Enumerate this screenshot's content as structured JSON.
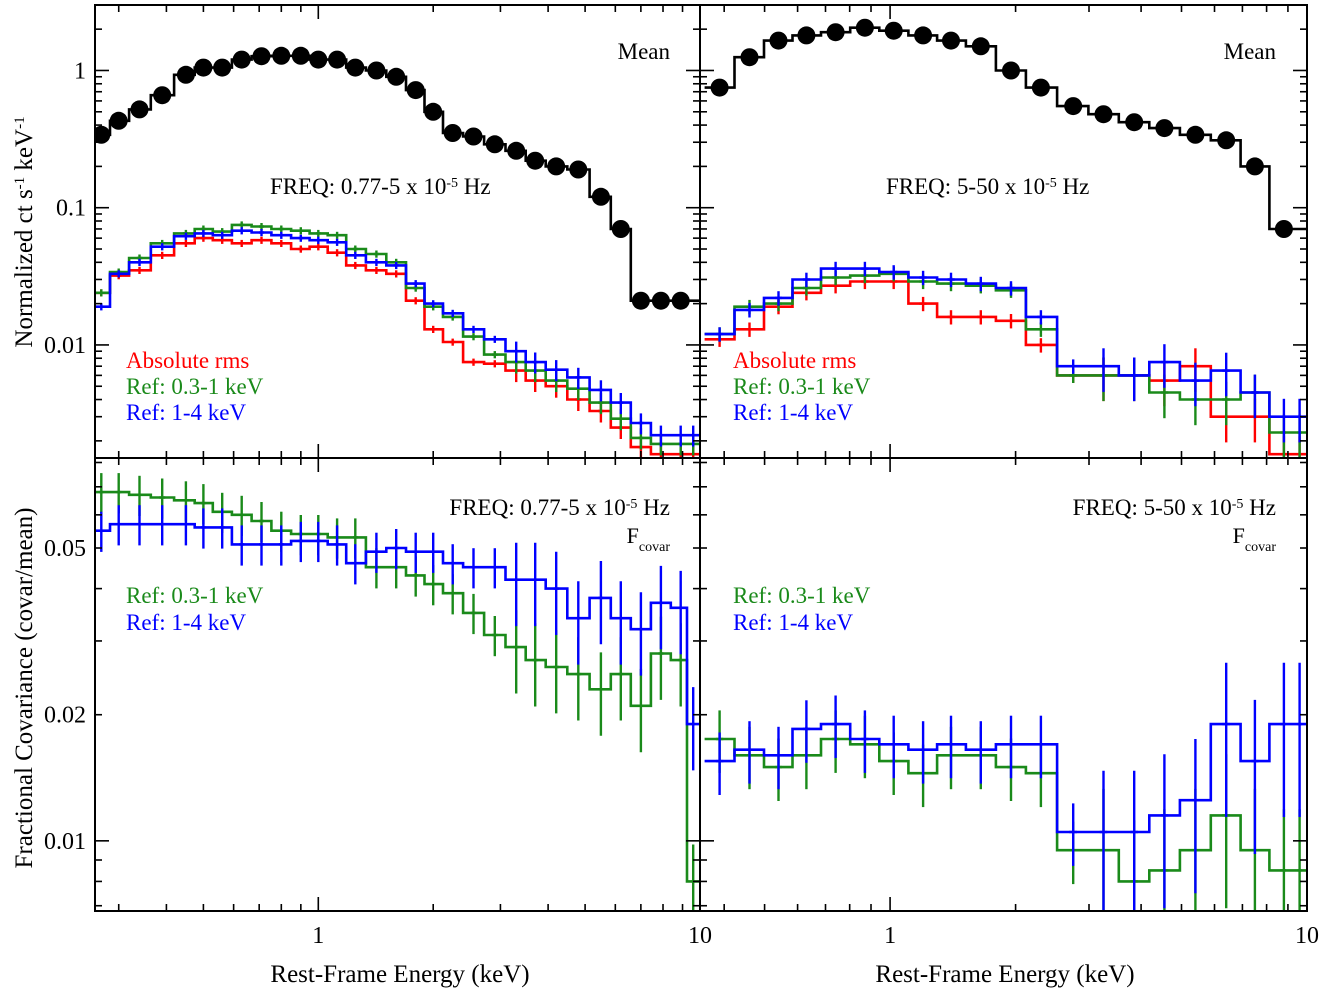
{
  "colors": {
    "mean": "#000000",
    "rms": "#ff0000",
    "ref_soft": "#1a8a1a",
    "ref_hard": "#0000ff"
  },
  "axes": {
    "xlabel": "Rest-Frame Energy (keV)",
    "ylabel_top": "Normalized ct s-1 keV-1",
    "ylabel_bottom": "Fractional Covariance (covar/mean)",
    "xlim_left": [
      0.26,
      10
    ],
    "xlim_right": [
      0.35,
      10
    ],
    "ylim_top": [
      0.0015,
      3.0
    ],
    "ylim_bottom": [
      0.0068,
      0.082
    ],
    "x_ticks": [
      {
        "v": 1,
        "t": "1"
      },
      {
        "v": 10,
        "t": "10"
      }
    ],
    "y_ticks_top": [
      {
        "v": 1,
        "t": "1"
      },
      {
        "v": 0.1,
        "t": "0.1"
      },
      {
        "v": 0.01,
        "t": "0.01"
      }
    ],
    "y_ticks_bottom": [
      {
        "v": 0.05,
        "t": "0.05"
      },
      {
        "v": 0.02,
        "t": "0.02"
      },
      {
        "v": 0.01,
        "t": "0.01"
      }
    ],
    "scale": "log-log"
  },
  "labels": {
    "mean": "Mean",
    "freq_low": "FREQ: 0.77-5 x 10",
    "freq_high": "FREQ: 5-50 x 10",
    "freq_exp": "-5",
    "freq_unit": " Hz",
    "fcovar": "F",
    "fcovar_sub": "covar",
    "legend_rms": "Absolute rms",
    "legend_soft": "Ref: 0.3-1 keV",
    "legend_hard": "Ref: 1-4 keV"
  },
  "chart_data": [
    {
      "panel": "top-left",
      "type": "line",
      "x_scale": "log",
      "y_scale": "log",
      "energy_keV": [
        0.27,
        0.3,
        0.34,
        0.39,
        0.45,
        0.5,
        0.56,
        0.63,
        0.71,
        0.8,
        0.9,
        1.0,
        1.12,
        1.25,
        1.42,
        1.6,
        1.8,
        2.0,
        2.25,
        2.55,
        2.9,
        3.3,
        3.7,
        4.2,
        4.8,
        5.5,
        6.2,
        7.0,
        7.9,
        8.9,
        9.6
      ],
      "series": [
        {
          "name": "Mean",
          "values": [
            0.34,
            0.43,
            0.52,
            0.66,
            0.93,
            1.05,
            1.05,
            1.2,
            1.27,
            1.28,
            1.28,
            1.2,
            1.2,
            1.05,
            1.0,
            0.9,
            0.72,
            0.5,
            0.35,
            0.33,
            0.29,
            0.26,
            0.22,
            0.2,
            0.19,
            0.12,
            0.07,
            0.021,
            0.021,
            0.021,
            0.021
          ]
        },
        {
          "name": "Absolute rms",
          "values": [
            0.024,
            0.032,
            0.035,
            0.045,
            0.055,
            0.06,
            0.058,
            0.055,
            0.058,
            0.055,
            0.05,
            0.052,
            0.047,
            0.038,
            0.035,
            0.033,
            0.021,
            0.013,
            0.0105,
            0.0075,
            0.0073,
            0.0065,
            0.0055,
            0.005,
            0.004,
            0.0033,
            0.0025,
            0.0018,
            0.0016,
            0.0016,
            0.0016
          ]
        },
        {
          "name": "Ref: 0.3-1 keV",
          "values": [
            0.024,
            0.034,
            0.043,
            0.055,
            0.065,
            0.07,
            0.067,
            0.075,
            0.073,
            0.07,
            0.068,
            0.065,
            0.063,
            0.05,
            0.046,
            0.04,
            0.026,
            0.019,
            0.016,
            0.0115,
            0.0085,
            0.0075,
            0.0065,
            0.0055,
            0.0048,
            0.0038,
            0.0029,
            0.0021,
            0.0019,
            0.0019,
            0.0019
          ]
        },
        {
          "name": "Ref: 1-4 keV",
          "values": [
            0.019,
            0.033,
            0.04,
            0.052,
            0.062,
            0.065,
            0.063,
            0.068,
            0.066,
            0.063,
            0.06,
            0.058,
            0.056,
            0.045,
            0.04,
            0.038,
            0.028,
            0.02,
            0.017,
            0.013,
            0.011,
            0.009,
            0.0075,
            0.0066,
            0.0058,
            0.0047,
            0.0038,
            0.0027,
            0.0022,
            0.0022,
            0.0022
          ]
        }
      ]
    },
    {
      "panel": "top-right",
      "type": "line",
      "x_scale": "log",
      "y_scale": "log",
      "energy_keV": [
        0.39,
        0.46,
        0.54,
        0.63,
        0.74,
        0.87,
        1.02,
        1.2,
        1.4,
        1.65,
        1.95,
        2.3,
        2.75,
        3.25,
        3.85,
        4.55,
        5.4,
        6.4,
        7.5,
        8.8,
        9.6
      ],
      "series": [
        {
          "name": "Mean",
          "values": [
            0.75,
            1.25,
            1.65,
            1.8,
            1.9,
            2.05,
            1.95,
            1.8,
            1.65,
            1.5,
            1.0,
            0.75,
            0.55,
            0.48,
            0.42,
            0.38,
            0.34,
            0.31,
            0.2,
            0.07,
            0.07
          ]
        },
        {
          "name": "Absolute rms",
          "values": [
            0.011,
            0.013,
            0.019,
            0.024,
            0.027,
            0.029,
            0.029,
            0.02,
            0.016,
            0.016,
            0.015,
            0.01,
            0.006,
            0.006,
            0.006,
            0.0055,
            0.007,
            0.003,
            0.003,
            0.0016,
            0.0016
          ]
        },
        {
          "name": "Ref: 0.3-1 keV",
          "values": [
            0.012,
            0.019,
            0.02,
            0.026,
            0.031,
            0.032,
            0.033,
            0.029,
            0.028,
            0.027,
            0.025,
            0.013,
            0.006,
            0.006,
            0.006,
            0.0045,
            0.004,
            0.004,
            0.0045,
            0.0023,
            0.0023
          ]
        },
        {
          "name": "Ref: 1-4 keV",
          "values": [
            0.012,
            0.018,
            0.022,
            0.03,
            0.036,
            0.036,
            0.034,
            0.031,
            0.03,
            0.028,
            0.026,
            0.016,
            0.007,
            0.007,
            0.006,
            0.0075,
            0.0055,
            0.0065,
            0.0045,
            0.003,
            0.003
          ]
        }
      ]
    },
    {
      "panel": "bottom-left",
      "type": "line",
      "x_scale": "log",
      "y_scale": "log",
      "energy_keV": [
        0.27,
        0.3,
        0.34,
        0.39,
        0.45,
        0.5,
        0.56,
        0.63,
        0.71,
        0.8,
        0.9,
        1.0,
        1.12,
        1.25,
        1.42,
        1.6,
        1.8,
        2.0,
        2.25,
        2.55,
        2.9,
        3.3,
        3.7,
        4.2,
        4.8,
        5.5,
        6.2,
        7.0,
        7.9,
        8.9,
        9.6
      ],
      "series": [
        {
          "name": "Ref: 0.3-1 keV",
          "values": [
            0.068,
            0.068,
            0.067,
            0.066,
            0.065,
            0.064,
            0.061,
            0.06,
            0.058,
            0.055,
            0.054,
            0.054,
            0.053,
            0.053,
            0.045,
            0.045,
            0.043,
            0.041,
            0.039,
            0.035,
            0.031,
            0.029,
            0.027,
            0.026,
            0.025,
            0.023,
            0.025,
            0.021,
            0.028,
            0.027,
            0.008
          ]
        },
        {
          "name": "Ref: 1-4 keV",
          "values": [
            0.055,
            0.057,
            0.057,
            0.057,
            0.057,
            0.056,
            0.056,
            0.051,
            0.051,
            0.051,
            0.052,
            0.052,
            0.051,
            0.046,
            0.049,
            0.05,
            0.049,
            0.049,
            0.046,
            0.045,
            0.045,
            0.042,
            0.042,
            0.04,
            0.034,
            0.038,
            0.034,
            0.032,
            0.037,
            0.036,
            0.019
          ]
        }
      ]
    },
    {
      "panel": "bottom-right",
      "type": "line",
      "x_scale": "log",
      "y_scale": "log",
      "energy_keV": [
        0.39,
        0.46,
        0.54,
        0.63,
        0.74,
        0.87,
        1.02,
        1.2,
        1.4,
        1.65,
        1.95,
        2.3,
        2.75,
        3.25,
        3.85,
        4.55,
        5.4,
        6.4,
        7.5,
        8.8,
        9.6
      ],
      "series": [
        {
          "name": "Ref: 0.3-1 keV",
          "values": [
            0.0175,
            0.016,
            0.015,
            0.016,
            0.0175,
            0.017,
            0.0155,
            0.0145,
            0.016,
            0.016,
            0.015,
            0.0145,
            0.0095,
            0.0095,
            0.008,
            0.0085,
            0.0095,
            0.0115,
            0.0095,
            0.0085,
            0.0085
          ]
        },
        {
          "name": "Ref: 1-4 keV",
          "values": [
            0.0155,
            0.0165,
            0.016,
            0.0185,
            0.019,
            0.0175,
            0.017,
            0.0165,
            0.017,
            0.0165,
            0.017,
            0.017,
            0.0105,
            0.0105,
            0.0105,
            0.0115,
            0.0125,
            0.019,
            0.0155,
            0.019,
            0.019
          ]
        }
      ]
    }
  ]
}
